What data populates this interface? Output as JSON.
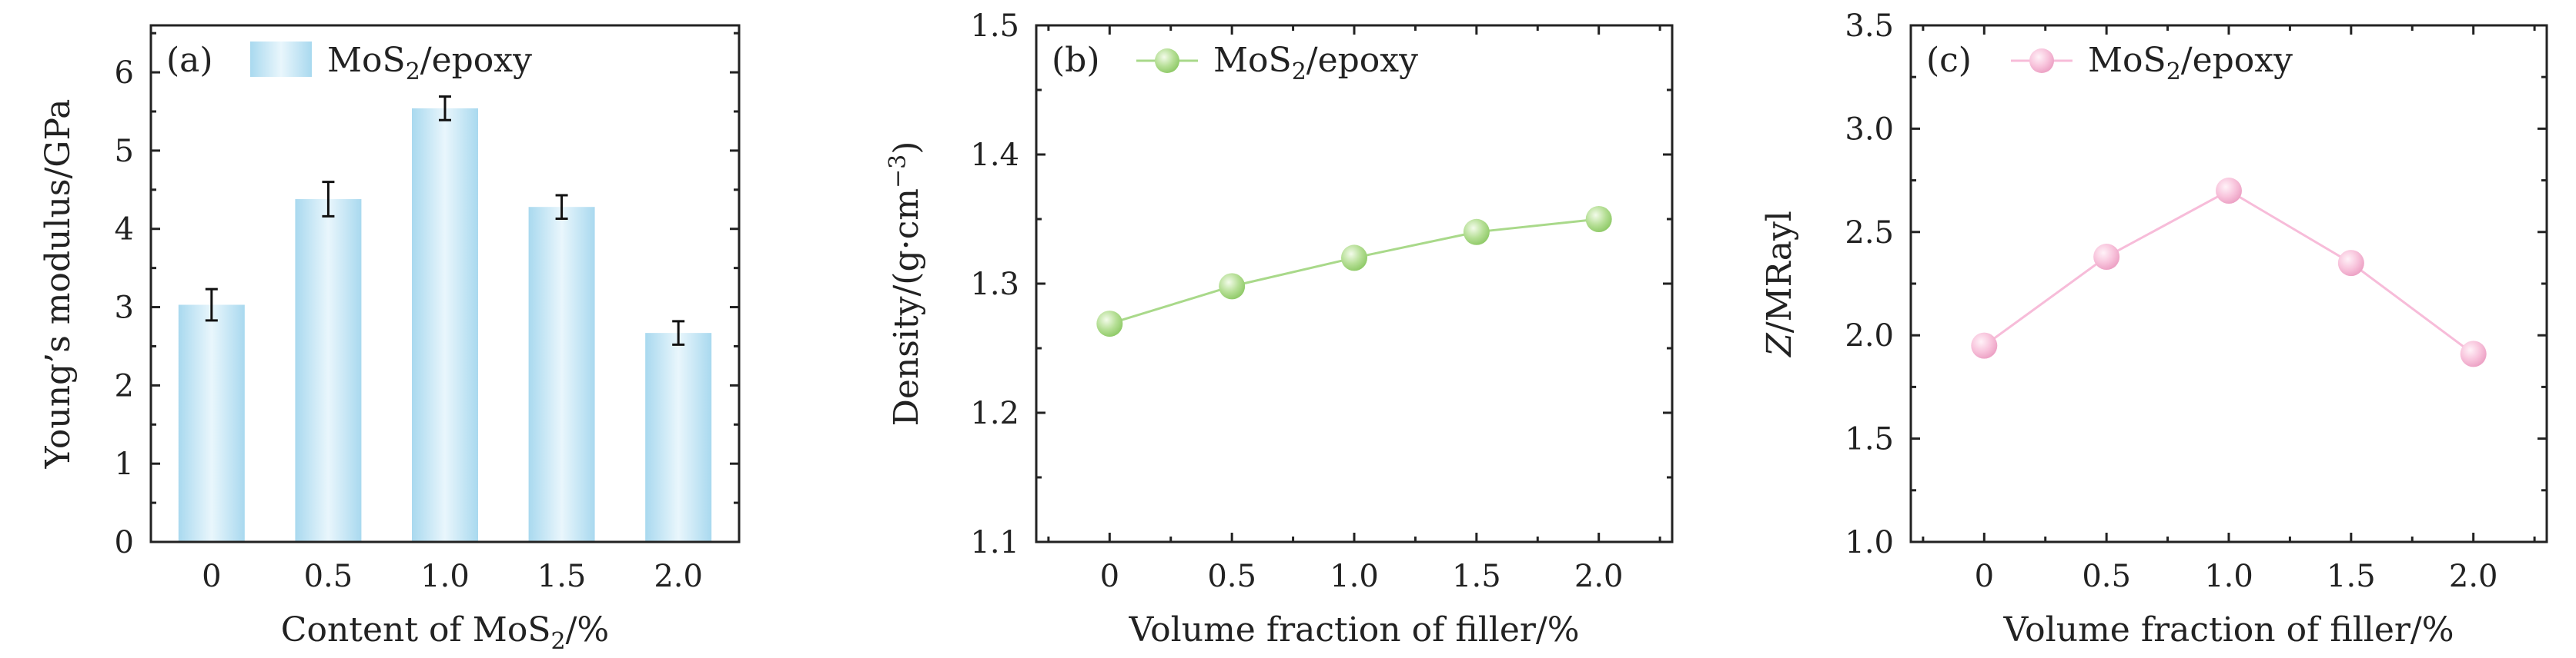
{
  "chart_data": [
    {
      "type": "bar",
      "panel": "(a)",
      "legend": [
        "MoS",
        "2",
        "/epoxy"
      ],
      "categories": [
        "0",
        "0.5",
        "1.0",
        "1.5",
        "2.0"
      ],
      "values": [
        3.03,
        4.38,
        5.54,
        4.28,
        2.67
      ],
      "errors": [
        0.2,
        0.22,
        0.15,
        0.15,
        0.15
      ],
      "ylim": [
        0,
        6.6
      ],
      "yticks": [
        "0",
        "1",
        "2",
        "3",
        "4",
        "5",
        "6"
      ],
      "ytick_values": [
        0,
        1,
        2,
        3,
        4,
        5,
        6
      ],
      "xlabel": [
        "Content of MoS",
        "2",
        "/%"
      ],
      "ylabel": "Young’s modulus/GPa",
      "color": "#a8d8ee"
    },
    {
      "type": "line",
      "panel": "(b)",
      "legend": [
        "MoS",
        "2",
        "/epoxy"
      ],
      "x": [
        0,
        0.5,
        1.0,
        1.5,
        2.0
      ],
      "y": [
        1.269,
        1.298,
        1.32,
        1.34,
        1.35
      ],
      "xticks": [
        "0",
        "0.5",
        "1.0",
        "1.5",
        "2.0"
      ],
      "xtick_values": [
        0,
        0.5,
        1.0,
        1.5,
        2.0
      ],
      "xlim": [
        -0.3,
        2.3
      ],
      "ylim": [
        1.1,
        1.5
      ],
      "yticks": [
        "1.1",
        "1.2",
        "1.3",
        "1.4",
        "1.5"
      ],
      "ytick_values": [
        1.1,
        1.2,
        1.3,
        1.4,
        1.5
      ],
      "xlabel": "Volume fraction of filler/%",
      "ylabel": [
        "Density/(g·cm",
        "−3",
        ")"
      ],
      "color": "#a9d98a"
    },
    {
      "type": "line",
      "panel": "(c)",
      "legend": [
        "MoS",
        "2",
        "/epoxy"
      ],
      "x": [
        0,
        0.5,
        1.0,
        1.5,
        2.0
      ],
      "y": [
        1.95,
        2.38,
        2.7,
        2.35,
        1.91
      ],
      "xticks": [
        "0",
        "0.5",
        "1.0",
        "1.5",
        "2.0"
      ],
      "xtick_values": [
        0,
        0.5,
        1.0,
        1.5,
        2.0
      ],
      "xlim": [
        -0.3,
        2.3
      ],
      "ylim": [
        1.0,
        3.5
      ],
      "yticks": [
        "1.0",
        "1.5",
        "2.0",
        "2.5",
        "3.0",
        "3.5"
      ],
      "ytick_values": [
        1.0,
        1.5,
        2.0,
        2.5,
        3.0,
        3.5
      ],
      "xlabel": "Volume fraction of filler/%",
      "ylabel": [
        "Z",
        "/MRayl"
      ],
      "color": "#f7bcd9"
    }
  ]
}
